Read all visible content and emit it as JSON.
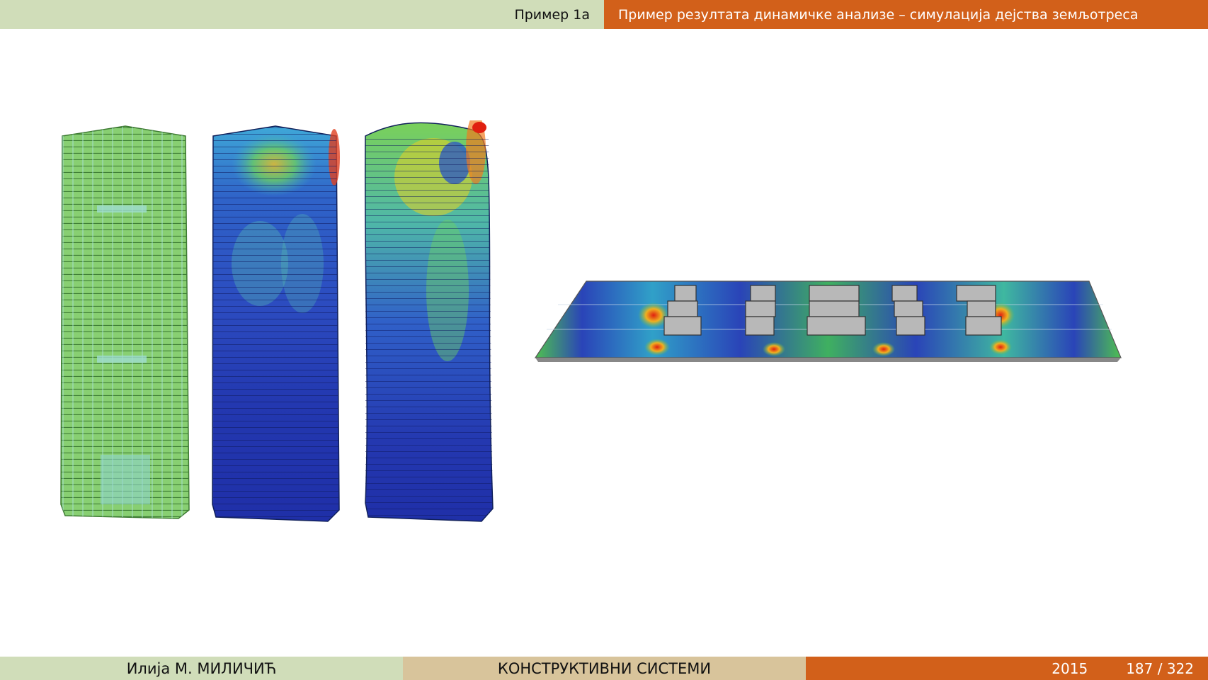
{
  "header": {
    "section": "Пример 1а",
    "title": "Пример резултата динамичке анализе – симулација дејства земљотреса"
  },
  "footer": {
    "author": "Илија М. МИЛИЧИЋ",
    "course": "КОНСТРУКТИВНИ СИСТЕМИ",
    "year": "2015",
    "page": "187 / 322"
  },
  "figures": {
    "towers": [
      {
        "name": "tower-undeformed",
        "color_scheme": "green"
      },
      {
        "name": "tower-stress-map",
        "color_scheme": "blue-green-red"
      },
      {
        "name": "tower-deformed",
        "color_scheme": "blue-green-red"
      }
    ],
    "slab": {
      "name": "foundation-slab",
      "color_scheme": "blue-green-red"
    }
  },
  "colors": {
    "header_left": "#d0ddb9",
    "header_right": "#d2601a",
    "footer_center": "#d8c49b",
    "stress_low": "#2a3fb0",
    "stress_mid": "#5cc45a",
    "stress_high": "#e0301e",
    "mesh_green": "#7ec86a"
  }
}
